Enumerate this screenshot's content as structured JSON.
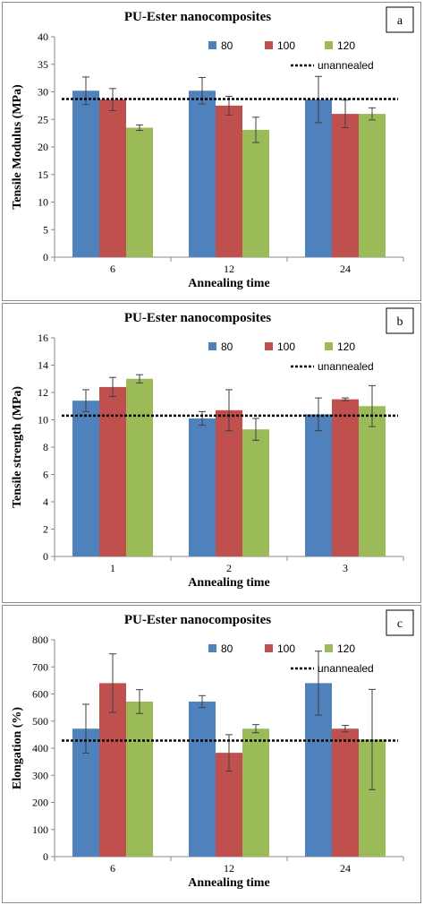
{
  "colors": {
    "s80": "#4F81BD",
    "s100": "#C0504D",
    "s120": "#9BBB59",
    "errorbar": "#404040",
    "dashed": "#000000"
  },
  "chart_data": [
    {
      "type": "bar",
      "panel_letter": "a",
      "title": "PU-Ester nanocomposites",
      "xlabel": "Annealing time",
      "ylabel": "Tensile Modulus (MPa)",
      "ylim": [
        0,
        40
      ],
      "yticks": [
        0,
        5,
        10,
        15,
        20,
        25,
        30,
        35,
        40
      ],
      "yticks_text": [
        "0",
        "5",
        "10",
        "15",
        "20",
        "25",
        "30",
        "35",
        "40"
      ],
      "categories": [
        "6",
        "12",
        "24"
      ],
      "series": [
        {
          "name": "80",
          "values": [
            30.2,
            30.2,
            28.6
          ],
          "errors": [
            2.5,
            2.4,
            4.2
          ]
        },
        {
          "name": "100",
          "values": [
            28.6,
            27.5,
            26.0
          ],
          "errors": [
            2.0,
            1.7,
            2.5
          ]
        },
        {
          "name": "120",
          "values": [
            23.5,
            23.1,
            26.0
          ],
          "errors": [
            0.5,
            2.3,
            1.1
          ]
        }
      ],
      "reference": {
        "name": "unannealed",
        "value": 28.7
      },
      "legend_position": "top-right",
      "grid": false
    },
    {
      "type": "bar",
      "panel_letter": "b",
      "title": "PU-Ester nanocomposites",
      "xlabel": "Annealing  time",
      "ylabel": "Tensile strength (MPa)",
      "ylim": [
        0,
        16
      ],
      "yticks": [
        0,
        2,
        4,
        6,
        8,
        10,
        12,
        14,
        16
      ],
      "yticks_text": [
        "0",
        "2",
        "4",
        "6",
        "8",
        "10",
        "12",
        "14",
        "16"
      ],
      "categories": [
        "1",
        "2",
        "3"
      ],
      "series": [
        {
          "name": "80",
          "values": [
            11.4,
            10.1,
            10.4
          ],
          "errors": [
            0.8,
            0.5,
            1.2
          ]
        },
        {
          "name": "100",
          "values": [
            12.4,
            10.7,
            11.5
          ],
          "errors": [
            0.7,
            1.5,
            0.1
          ]
        },
        {
          "name": "120",
          "values": [
            13.0,
            9.3,
            11.0
          ],
          "errors": [
            0.3,
            0.8,
            1.5
          ]
        }
      ],
      "reference": {
        "name": "unannealed",
        "value": 10.3
      },
      "legend_position": "top-right",
      "grid": false
    },
    {
      "type": "bar",
      "panel_letter": "c",
      "title": "PU-Ester nanocomposites",
      "xlabel": "Annealing time",
      "ylabel": "Elongation  (%)",
      "ylim": [
        0,
        800
      ],
      "yticks": [
        0,
        100,
        200,
        300,
        400,
        500,
        600,
        700,
        800
      ],
      "yticks_text": [
        "0",
        "100",
        "200",
        "300",
        "400",
        "500",
        "600",
        "700",
        "800"
      ],
      "categories": [
        "6",
        "12",
        "24"
      ],
      "series": [
        {
          "name": "80",
          "values": [
            472,
            572,
            640
          ],
          "errors": [
            90,
            22,
            118
          ]
        },
        {
          "name": "100",
          "values": [
            640,
            383,
            472
          ],
          "errors": [
            108,
            67,
            12
          ]
        },
        {
          "name": "120",
          "values": [
            572,
            472,
            432
          ],
          "errors": [
            44,
            15,
            185
          ]
        }
      ],
      "reference": {
        "name": "unannealed",
        "value": 428
      },
      "legend_position": "top-right",
      "grid": false
    }
  ]
}
